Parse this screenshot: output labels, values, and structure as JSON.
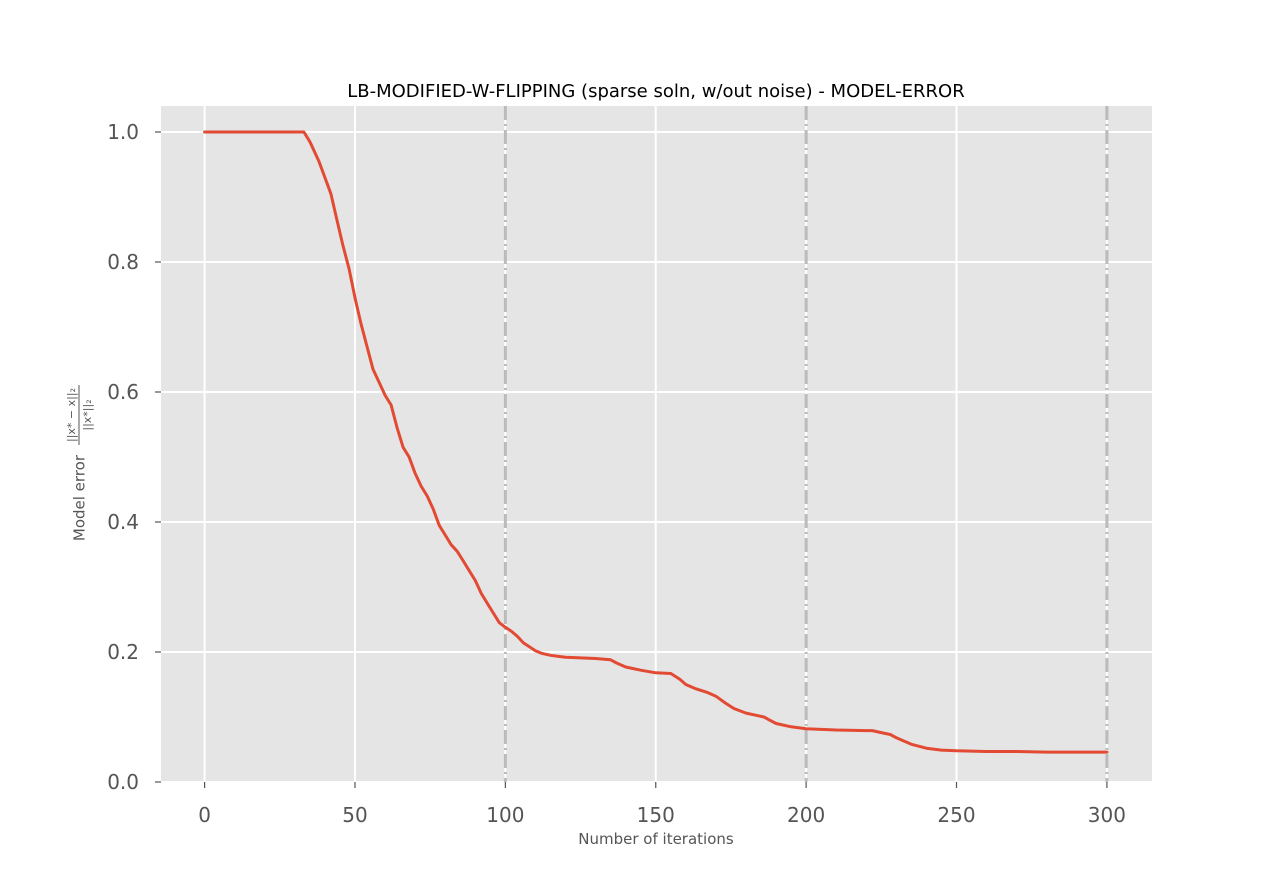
{
  "chart_data": {
    "type": "line",
    "title": "LB-MODIFIED-W-FLIPPING (sparse soln, w/out noise) - MODEL-ERROR",
    "xlabel": "Number of iterations",
    "ylabel": {
      "prefix": "Model error",
      "numerator": "||x* − x||₂",
      "denominator": "||x*||₂"
    },
    "xlim": [
      -14.5,
      315
    ],
    "ylim": [
      0,
      1.04
    ],
    "xticks": [
      0,
      50,
      100,
      150,
      200,
      250,
      300
    ],
    "xtick_labels": [
      "0",
      "50",
      "100",
      "150",
      "200",
      "250",
      "300"
    ],
    "yticks": [
      0.0,
      0.2,
      0.4,
      0.6,
      0.8,
      1.0
    ],
    "ytick_labels": [
      "0.0",
      "0.2",
      "0.4",
      "0.6",
      "0.8",
      "1.0"
    ],
    "grid": true,
    "vlines": [
      100,
      200,
      300
    ],
    "colors": {
      "background": "#e5e5e5",
      "grid": "#ffffff",
      "line": "#e24a33",
      "vline": "#bbbbbb"
    },
    "series": [
      {
        "x": [
          0,
          10,
          20,
          30,
          33,
          35,
          38,
          40,
          42,
          44,
          46,
          48,
          50,
          52,
          54,
          56,
          58,
          60,
          62,
          64,
          66,
          68,
          70,
          72,
          74,
          76,
          78,
          80,
          82,
          84,
          86,
          88,
          90,
          92,
          94,
          96,
          98,
          100,
          102,
          104,
          106,
          108,
          110,
          112,
          115,
          118,
          120,
          125,
          130,
          135,
          137,
          140,
          145,
          150,
          155,
          158,
          160,
          163,
          167,
          170,
          173,
          176,
          180,
          184,
          186,
          188,
          190,
          195,
          200,
          210,
          220,
          222,
          225,
          228,
          230,
          232,
          235,
          240,
          245,
          250,
          260,
          270,
          280,
          290,
          300
        ],
        "values": [
          1.0,
          1.0,
          1.0,
          1.0,
          1.0,
          0.985,
          0.955,
          0.93,
          0.905,
          0.865,
          0.825,
          0.79,
          0.745,
          0.705,
          0.67,
          0.635,
          0.615,
          0.595,
          0.58,
          0.545,
          0.515,
          0.5,
          0.475,
          0.455,
          0.44,
          0.42,
          0.395,
          0.38,
          0.365,
          0.355,
          0.34,
          0.325,
          0.31,
          0.29,
          0.275,
          0.26,
          0.245,
          0.238,
          0.232,
          0.224,
          0.214,
          0.208,
          0.202,
          0.198,
          0.195,
          0.193,
          0.192,
          0.191,
          0.19,
          0.188,
          0.183,
          0.177,
          0.172,
          0.168,
          0.167,
          0.158,
          0.15,
          0.144,
          0.138,
          0.132,
          0.122,
          0.113,
          0.106,
          0.102,
          0.1,
          0.095,
          0.09,
          0.085,
          0.082,
          0.08,
          0.079,
          0.079,
          0.076,
          0.073,
          0.068,
          0.064,
          0.058,
          0.052,
          0.049,
          0.048,
          0.047,
          0.047,
          0.046,
          0.046,
          0.046
        ]
      }
    ]
  }
}
